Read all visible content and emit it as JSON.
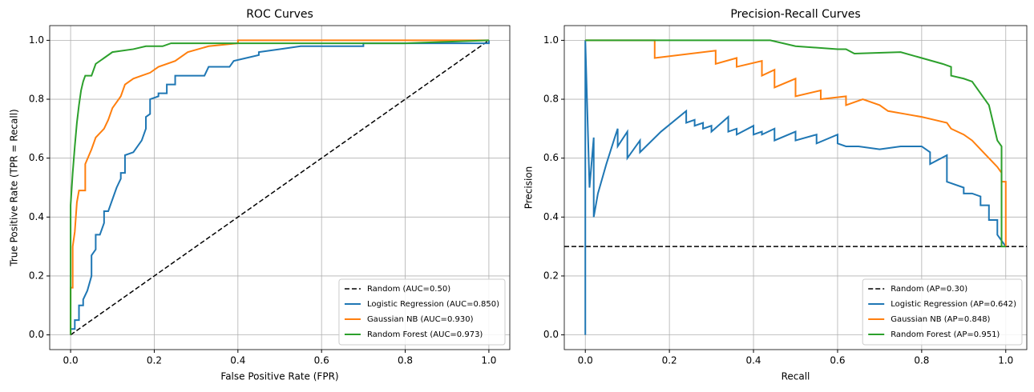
{
  "chart_data": [
    {
      "type": "line",
      "title": "ROC Curves",
      "xlabel": "False Positive Rate (FPR)",
      "ylabel": "True Positive Rate (TPR = Recall)",
      "xlim": [
        -0.05,
        1.05
      ],
      "ylim": [
        -0.05,
        1.05
      ],
      "xticks": [
        {
          "value": 0,
          "label": "0.0"
        },
        {
          "value": 0.2,
          "label": "0.2"
        },
        {
          "value": 0.4,
          "label": "0.4"
        },
        {
          "value": 0.6,
          "label": "0.6"
        },
        {
          "value": 0.8,
          "label": "0.8"
        },
        {
          "value": 1,
          "label": "1.0"
        }
      ],
      "yticks": [
        {
          "value": 0,
          "label": "0.0"
        },
        {
          "value": 0.2,
          "label": "0.2"
        },
        {
          "value": 0.4,
          "label": "0.4"
        },
        {
          "value": 0.6,
          "label": "0.6"
        },
        {
          "value": 0.8,
          "label": "0.8"
        },
        {
          "value": 1,
          "label": "1.0"
        }
      ],
      "grid": true,
      "legend": "lower right",
      "series": [
        {
          "name": "Random (AUC=0.50)",
          "color": "#000000",
          "dashed": true,
          "x": [
            0,
            1
          ],
          "values": [
            0,
            1
          ]
        },
        {
          "name": "Logistic Regression (AUC=0.850)",
          "color": "#1f77b4",
          "x": [
            0,
            0,
            0.01,
            0.01,
            0.02,
            0.02,
            0.03,
            0.03,
            0.04,
            0.05,
            0.05,
            0.06,
            0.06,
            0.07,
            0.08,
            0.08,
            0.09,
            0.1,
            0.11,
            0.12,
            0.12,
            0.13,
            0.13,
            0.15,
            0.16,
            0.17,
            0.18,
            0.18,
            0.19,
            0.19,
            0.21,
            0.21,
            0.23,
            0.23,
            0.25,
            0.25,
            0.32,
            0.33,
            0.38,
            0.39,
            0.42,
            0.45,
            0.45,
            0.5,
            0.55,
            0.7,
            0.7,
            1,
            1
          ],
          "values": [
            0,
            0.02,
            0.02,
            0.05,
            0.05,
            0.1,
            0.1,
            0.12,
            0.15,
            0.2,
            0.27,
            0.29,
            0.34,
            0.34,
            0.38,
            0.42,
            0.42,
            0.46,
            0.5,
            0.53,
            0.55,
            0.55,
            0.61,
            0.62,
            0.64,
            0.66,
            0.7,
            0.74,
            0.75,
            0.8,
            0.81,
            0.82,
            0.82,
            0.85,
            0.85,
            0.88,
            0.88,
            0.91,
            0.91,
            0.93,
            0.94,
            0.95,
            0.96,
            0.97,
            0.98,
            0.98,
            0.99,
            0.99,
            1
          ]
        },
        {
          "name": "Gaussian NB (AUC=0.930)",
          "color": "#ff7f0e",
          "x": [
            0,
            0,
            0.005,
            0.005,
            0.01,
            0.015,
            0.02,
            0.035,
            0.035,
            0.05,
            0.06,
            0.08,
            0.09,
            0.1,
            0.12,
            0.13,
            0.15,
            0.17,
            0.19,
            0.21,
            0.25,
            0.28,
            0.33,
            0.4,
            0.4,
            1
          ],
          "values": [
            0,
            0.16,
            0.16,
            0.3,
            0.35,
            0.45,
            0.49,
            0.49,
            0.58,
            0.63,
            0.67,
            0.7,
            0.73,
            0.77,
            0.81,
            0.85,
            0.87,
            0.88,
            0.89,
            0.91,
            0.93,
            0.96,
            0.98,
            0.99,
            1,
            1
          ]
        },
        {
          "name": "Random Forest (AUC=0.973)",
          "color": "#2ca02c",
          "x": [
            0,
            0,
            0.005,
            0.01,
            0.015,
            0.02,
            0.025,
            0.03,
            0.035,
            0.05,
            0.06,
            0.08,
            0.1,
            0.15,
            0.18,
            0.22,
            0.24,
            0.4,
            0.8,
            1
          ],
          "values": [
            0,
            0.44,
            0.55,
            0.64,
            0.72,
            0.78,
            0.83,
            0.86,
            0.88,
            0.88,
            0.92,
            0.94,
            0.96,
            0.97,
            0.98,
            0.98,
            0.99,
            0.99,
            0.99,
            1
          ]
        }
      ]
    },
    {
      "type": "line",
      "title": "Precision-Recall Curves",
      "xlabel": "Recall",
      "ylabel": "Precision",
      "xlim": [
        -0.05,
        1.05
      ],
      "ylim": [
        -0.05,
        1.05
      ],
      "xticks": [
        {
          "value": 0,
          "label": "0.0"
        },
        {
          "value": 0.2,
          "label": "0.2"
        },
        {
          "value": 0.4,
          "label": "0.4"
        },
        {
          "value": 0.6,
          "label": "0.6"
        },
        {
          "value": 0.8,
          "label": "0.8"
        },
        {
          "value": 1,
          "label": "1.0"
        }
      ],
      "yticks": [
        {
          "value": 0,
          "label": "0.0"
        },
        {
          "value": 0.2,
          "label": "0.2"
        },
        {
          "value": 0.4,
          "label": "0.4"
        },
        {
          "value": 0.6,
          "label": "0.6"
        },
        {
          "value": 0.8,
          "label": "0.8"
        },
        {
          "value": 1,
          "label": "1.0"
        }
      ],
      "grid": true,
      "legend": "lower right",
      "series": [
        {
          "name": "Random (AP=0.30)",
          "color": "#000000",
          "dashed": true,
          "x": [
            -0.05,
            1.05
          ],
          "values": [
            0.3,
            0.3
          ]
        },
        {
          "name": "Logistic Regression (AP=0.642)",
          "color": "#1f77b4",
          "x": [
            0,
            0,
            0.01,
            0.02,
            0.02,
            0.03,
            0.05,
            0.07,
            0.077,
            0.077,
            0.1,
            0.1,
            0.13,
            0.13,
            0.18,
            0.24,
            0.24,
            0.26,
            0.26,
            0.28,
            0.28,
            0.3,
            0.3,
            0.34,
            0.34,
            0.36,
            0.36,
            0.4,
            0.4,
            0.42,
            0.42,
            0.45,
            0.45,
            0.5,
            0.5,
            0.55,
            0.55,
            0.6,
            0.6,
            0.62,
            0.65,
            0.7,
            0.75,
            0.8,
            0.82,
            0.82,
            0.86,
            0.86,
            0.9,
            0.9,
            0.92,
            0.94,
            0.94,
            0.96,
            0.96,
            0.98,
            0.98,
            1
          ],
          "values": [
            0,
            1,
            0.5,
            0.67,
            0.4,
            0.48,
            0.58,
            0.67,
            0.7,
            0.64,
            0.69,
            0.6,
            0.66,
            0.62,
            0.69,
            0.76,
            0.72,
            0.73,
            0.71,
            0.72,
            0.7,
            0.71,
            0.69,
            0.74,
            0.69,
            0.7,
            0.68,
            0.71,
            0.68,
            0.69,
            0.68,
            0.7,
            0.66,
            0.69,
            0.66,
            0.68,
            0.65,
            0.68,
            0.65,
            0.64,
            0.64,
            0.63,
            0.64,
            0.64,
            0.62,
            0.58,
            0.61,
            0.52,
            0.5,
            0.48,
            0.48,
            0.47,
            0.44,
            0.44,
            0.39,
            0.39,
            0.34,
            0.3
          ]
        },
        {
          "name": "Gaussian NB (AP=0.848)",
          "color": "#ff7f0e",
          "x": [
            0,
            0.165,
            0.165,
            0.31,
            0.31,
            0.36,
            0.36,
            0.42,
            0.42,
            0.45,
            0.45,
            0.5,
            0.5,
            0.56,
            0.56,
            0.62,
            0.62,
            0.66,
            0.7,
            0.72,
            0.76,
            0.8,
            0.83,
            0.86,
            0.87,
            0.9,
            0.92,
            0.94,
            0.96,
            0.98,
            0.99,
            0.99,
            1,
            1
          ],
          "values": [
            1,
            1,
            0.94,
            0.965,
            0.92,
            0.94,
            0.91,
            0.93,
            0.88,
            0.9,
            0.84,
            0.87,
            0.81,
            0.83,
            0.8,
            0.81,
            0.78,
            0.8,
            0.78,
            0.76,
            0.75,
            0.74,
            0.73,
            0.72,
            0.7,
            0.68,
            0.66,
            0.63,
            0.6,
            0.57,
            0.55,
            0.52,
            0.52,
            0.3
          ]
        },
        {
          "name": "Random Forest (AP=0.951)",
          "color": "#2ca02c",
          "x": [
            0,
            0.44,
            0.5,
            0.6,
            0.62,
            0.64,
            0.75,
            0.8,
            0.85,
            0.87,
            0.87,
            0.9,
            0.92,
            0.94,
            0.96,
            0.97,
            0.98,
            0.99,
            0.99,
            1
          ],
          "values": [
            1,
            1,
            0.98,
            0.97,
            0.97,
            0.955,
            0.96,
            0.94,
            0.92,
            0.91,
            0.88,
            0.87,
            0.86,
            0.82,
            0.78,
            0.72,
            0.66,
            0.64,
            0.3,
            0.3
          ]
        }
      ]
    }
  ]
}
